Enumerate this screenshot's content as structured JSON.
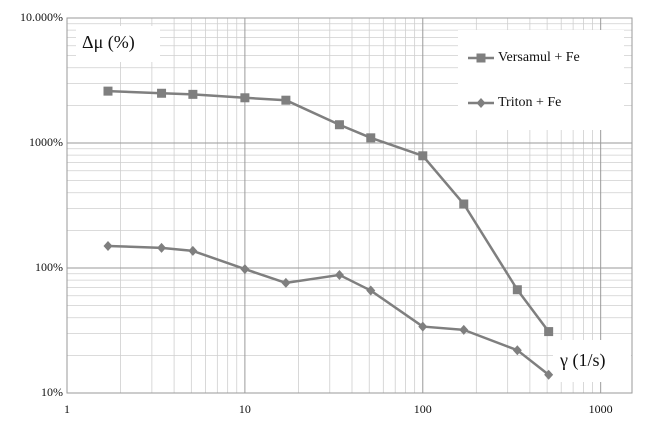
{
  "chart_data": {
    "type": "line",
    "x": [
      1.7,
      3.4,
      5.1,
      10,
      17,
      34,
      51,
      100,
      170,
      340,
      510
    ],
    "series": [
      {
        "name": "Versamul + Fe",
        "color": "#7f7f7f",
        "marker": "square",
        "values": [
          2600,
          2500,
          2450,
          2300,
          2200,
          1400,
          1100,
          790,
          325,
          67,
          31
        ]
      },
      {
        "name": "Triton + Fe",
        "color": "#7f7f7f",
        "marker": "diamond",
        "values": [
          150,
          145,
          137,
          98,
          76,
          88,
          66,
          34,
          32,
          22,
          14
        ]
      }
    ],
    "xlim": [
      1,
      1500
    ],
    "xticks": [
      1,
      10,
      100,
      1000
    ],
    "ylim": [
      10,
      10000
    ],
    "yticks": [
      {
        "value": 10,
        "label": "10%"
      },
      {
        "value": 100,
        "label": "100%"
      },
      {
        "value": 1000,
        "label": "1000%"
      },
      {
        "value": 10000,
        "label": "10.000%"
      }
    ],
    "log_x": true,
    "log_y": true,
    "grid": true,
    "legend": "upper right",
    "annotations": [
      "Δμ (%)",
      "γ (1/s)"
    ]
  }
}
